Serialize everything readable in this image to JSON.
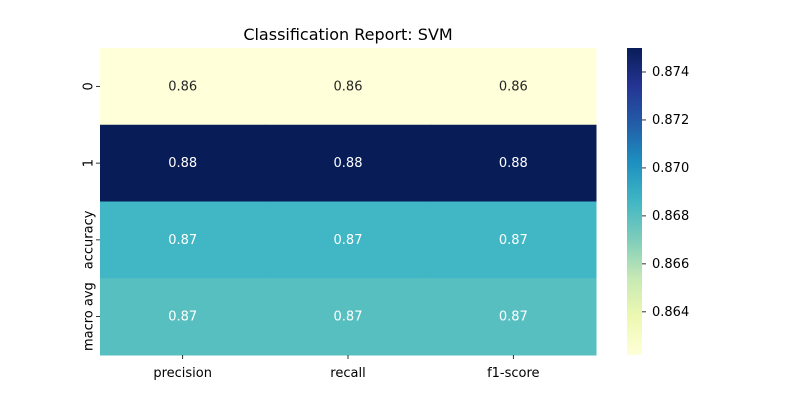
{
  "chart_data": {
    "type": "heatmap",
    "title": "Classification Report: SVM",
    "xlabel": "",
    "ylabel": "",
    "x_categories": [
      "precision",
      "recall",
      "f1-score"
    ],
    "y_categories": [
      "0",
      "1",
      "accuracy",
      "macro avg"
    ],
    "values": [
      [
        0.8622,
        0.8622,
        0.8622
      ],
      [
        0.875,
        0.875,
        0.875
      ],
      [
        0.8686,
        0.8686,
        0.8686
      ],
      [
        0.868,
        0.868,
        0.868
      ]
    ],
    "annotations": [
      [
        "0.86",
        "0.86",
        "0.86"
      ],
      [
        "0.88",
        "0.88",
        "0.88"
      ],
      [
        "0.87",
        "0.87",
        "0.87"
      ],
      [
        "0.87",
        "0.87",
        "0.87"
      ]
    ],
    "colormap": "YlGnBu",
    "colorbar": {
      "vmin": 0.8622,
      "vmax": 0.875,
      "ticks": [
        0.864,
        0.866,
        0.868,
        0.87,
        0.872,
        0.874
      ],
      "tick_labels": [
        "0.864",
        "0.866",
        "0.868",
        "0.870",
        "0.872",
        "0.874"
      ]
    },
    "grid": false
  }
}
